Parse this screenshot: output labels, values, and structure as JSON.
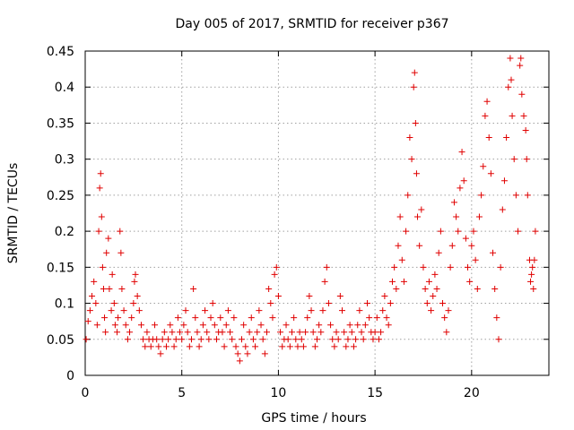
{
  "chart_data": {
    "type": "scatter",
    "title": "Day 005 of 2017, SRMTID for receiver p367",
    "xlabel": "GPS time / hours",
    "ylabel": "SRMTID / TECUs",
    "xlim": [
      0,
      24
    ],
    "ylim": [
      0,
      0.45
    ],
    "x_ticks": [
      0,
      5,
      10,
      15,
      20
    ],
    "x_tick_labels": [
      "0",
      "5",
      "10",
      "15",
      "20"
    ],
    "y_ticks": [
      0,
      0.05,
      0.1,
      0.15,
      0.2,
      0.25,
      0.3,
      0.35,
      0.4,
      0.45
    ],
    "y_tick_labels": [
      "0",
      "0.05",
      "0.1",
      "0.15",
      "0.2",
      "0.25",
      "0.3",
      "0.35",
      "0.4",
      "0.45"
    ],
    "grid": true,
    "marker": "plus",
    "color": "#e00000",
    "series": [
      {
        "name": "SRMTID",
        "points": [
          [
            0.05,
            0.05
          ],
          [
            0.15,
            0.075
          ],
          [
            0.25,
            0.09
          ],
          [
            0.35,
            0.11
          ],
          [
            0.45,
            0.13
          ],
          [
            0.55,
            0.1
          ],
          [
            0.62,
            0.07
          ],
          [
            0.7,
            0.2
          ],
          [
            0.75,
            0.26
          ],
          [
            0.8,
            0.28
          ],
          [
            0.85,
            0.22
          ],
          [
            0.9,
            0.15
          ],
          [
            0.95,
            0.12
          ],
          [
            1.0,
            0.08
          ],
          [
            1.05,
            0.06
          ],
          [
            1.1,
            0.17
          ],
          [
            1.2,
            0.19
          ],
          [
            1.25,
            0.12
          ],
          [
            1.35,
            0.09
          ],
          [
            1.4,
            0.14
          ],
          [
            1.5,
            0.1
          ],
          [
            1.55,
            0.07
          ],
          [
            1.65,
            0.06
          ],
          [
            1.7,
            0.08
          ],
          [
            1.8,
            0.2
          ],
          [
            1.85,
            0.17
          ],
          [
            1.9,
            0.12
          ],
          [
            2.0,
            0.09
          ],
          [
            2.1,
            0.07
          ],
          [
            2.2,
            0.05
          ],
          [
            2.3,
            0.06
          ],
          [
            2.4,
            0.08
          ],
          [
            2.5,
            0.1
          ],
          [
            2.55,
            0.13
          ],
          [
            2.6,
            0.14
          ],
          [
            2.7,
            0.11
          ],
          [
            2.8,
            0.09
          ],
          [
            2.9,
            0.07
          ],
          [
            3.0,
            0.05
          ],
          [
            3.1,
            0.04
          ],
          [
            3.2,
            0.06
          ],
          [
            3.3,
            0.05
          ],
          [
            3.4,
            0.04
          ],
          [
            3.5,
            0.05
          ],
          [
            3.6,
            0.07
          ],
          [
            3.7,
            0.05
          ],
          [
            3.8,
            0.04
          ],
          [
            3.9,
            0.03
          ],
          [
            4.0,
            0.05
          ],
          [
            4.1,
            0.06
          ],
          [
            4.2,
            0.04
          ],
          [
            4.3,
            0.05
          ],
          [
            4.4,
            0.07
          ],
          [
            4.5,
            0.06
          ],
          [
            4.6,
            0.04
          ],
          [
            4.7,
            0.05
          ],
          [
            4.8,
            0.08
          ],
          [
            4.9,
            0.06
          ],
          [
            5.0,
            0.05
          ],
          [
            5.1,
            0.07
          ],
          [
            5.2,
            0.09
          ],
          [
            5.3,
            0.06
          ],
          [
            5.4,
            0.04
          ],
          [
            5.5,
            0.05
          ],
          [
            5.6,
            0.12
          ],
          [
            5.7,
            0.08
          ],
          [
            5.8,
            0.06
          ],
          [
            5.9,
            0.04
          ],
          [
            6.0,
            0.05
          ],
          [
            6.1,
            0.07
          ],
          [
            6.2,
            0.09
          ],
          [
            6.3,
            0.06
          ],
          [
            6.4,
            0.05
          ],
          [
            6.5,
            0.08
          ],
          [
            6.6,
            0.1
          ],
          [
            6.7,
            0.07
          ],
          [
            6.8,
            0.05
          ],
          [
            6.9,
            0.06
          ],
          [
            7.0,
            0.08
          ],
          [
            7.1,
            0.06
          ],
          [
            7.2,
            0.04
          ],
          [
            7.3,
            0.07
          ],
          [
            7.4,
            0.09
          ],
          [
            7.5,
            0.06
          ],
          [
            7.6,
            0.05
          ],
          [
            7.7,
            0.08
          ],
          [
            7.8,
            0.04
          ],
          [
            7.9,
            0.03
          ],
          [
            8.0,
            0.02
          ],
          [
            8.1,
            0.05
          ],
          [
            8.2,
            0.07
          ],
          [
            8.3,
            0.04
          ],
          [
            8.4,
            0.03
          ],
          [
            8.5,
            0.06
          ],
          [
            8.6,
            0.08
          ],
          [
            8.7,
            0.05
          ],
          [
            8.8,
            0.04
          ],
          [
            8.9,
            0.06
          ],
          [
            9.0,
            0.09
          ],
          [
            9.1,
            0.07
          ],
          [
            9.2,
            0.05
          ],
          [
            9.3,
            0.03
          ],
          [
            9.4,
            0.06
          ],
          [
            9.5,
            0.12
          ],
          [
            9.6,
            0.1
          ],
          [
            9.7,
            0.08
          ],
          [
            9.8,
            0.14
          ],
          [
            9.9,
            0.15
          ],
          [
            10.0,
            0.11
          ],
          [
            10.1,
            0.06
          ],
          [
            10.2,
            0.04
          ],
          [
            10.3,
            0.05
          ],
          [
            10.4,
            0.07
          ],
          [
            10.5,
            0.05
          ],
          [
            10.6,
            0.04
          ],
          [
            10.7,
            0.06
          ],
          [
            10.8,
            0.08
          ],
          [
            10.9,
            0.05
          ],
          [
            11.0,
            0.04
          ],
          [
            11.1,
            0.06
          ],
          [
            11.2,
            0.05
          ],
          [
            11.3,
            0.04
          ],
          [
            11.4,
            0.06
          ],
          [
            11.5,
            0.08
          ],
          [
            11.6,
            0.11
          ],
          [
            11.7,
            0.09
          ],
          [
            11.8,
            0.06
          ],
          [
            11.9,
            0.04
          ],
          [
            12.0,
            0.05
          ],
          [
            12.1,
            0.07
          ],
          [
            12.2,
            0.06
          ],
          [
            12.3,
            0.09
          ],
          [
            12.4,
            0.13
          ],
          [
            12.5,
            0.15
          ],
          [
            12.6,
            0.1
          ],
          [
            12.7,
            0.07
          ],
          [
            12.8,
            0.05
          ],
          [
            12.9,
            0.04
          ],
          [
            13.0,
            0.06
          ],
          [
            13.1,
            0.05
          ],
          [
            13.2,
            0.11
          ],
          [
            13.3,
            0.09
          ],
          [
            13.4,
            0.06
          ],
          [
            13.5,
            0.04
          ],
          [
            13.6,
            0.05
          ],
          [
            13.7,
            0.07
          ],
          [
            13.8,
            0.06
          ],
          [
            13.9,
            0.04
          ],
          [
            14.0,
            0.05
          ],
          [
            14.1,
            0.07
          ],
          [
            14.2,
            0.09
          ],
          [
            14.3,
            0.06
          ],
          [
            14.4,
            0.05
          ],
          [
            14.5,
            0.07
          ],
          [
            14.6,
            0.1
          ],
          [
            14.7,
            0.08
          ],
          [
            14.8,
            0.06
          ],
          [
            14.9,
            0.05
          ],
          [
            15.0,
            0.06
          ],
          [
            15.1,
            0.08
          ],
          [
            15.2,
            0.05
          ],
          [
            15.3,
            0.06
          ],
          [
            15.4,
            0.09
          ],
          [
            15.5,
            0.11
          ],
          [
            15.6,
            0.08
          ],
          [
            15.7,
            0.07
          ],
          [
            15.8,
            0.1
          ],
          [
            15.9,
            0.13
          ],
          [
            16.0,
            0.15
          ],
          [
            16.1,
            0.12
          ],
          [
            16.2,
            0.18
          ],
          [
            16.3,
            0.22
          ],
          [
            16.4,
            0.16
          ],
          [
            16.5,
            0.13
          ],
          [
            16.6,
            0.2
          ],
          [
            16.7,
            0.25
          ],
          [
            16.8,
            0.33
          ],
          [
            16.9,
            0.3
          ],
          [
            17.0,
            0.4
          ],
          [
            17.05,
            0.42
          ],
          [
            17.1,
            0.35
          ],
          [
            17.15,
            0.28
          ],
          [
            17.2,
            0.22
          ],
          [
            17.3,
            0.18
          ],
          [
            17.4,
            0.23
          ],
          [
            17.5,
            0.15
          ],
          [
            17.6,
            0.12
          ],
          [
            17.7,
            0.1
          ],
          [
            17.8,
            0.13
          ],
          [
            17.9,
            0.09
          ],
          [
            18.0,
            0.11
          ],
          [
            18.1,
            0.14
          ],
          [
            18.2,
            0.12
          ],
          [
            18.3,
            0.17
          ],
          [
            18.4,
            0.2
          ],
          [
            18.5,
            0.1
          ],
          [
            18.6,
            0.08
          ],
          [
            18.7,
            0.06
          ],
          [
            18.8,
            0.09
          ],
          [
            18.9,
            0.15
          ],
          [
            19.0,
            0.18
          ],
          [
            19.1,
            0.24
          ],
          [
            19.2,
            0.22
          ],
          [
            19.3,
            0.2
          ],
          [
            19.4,
            0.26
          ],
          [
            19.5,
            0.31
          ],
          [
            19.6,
            0.27
          ],
          [
            19.7,
            0.19
          ],
          [
            19.8,
            0.15
          ],
          [
            19.9,
            0.13
          ],
          [
            20.0,
            0.18
          ],
          [
            20.1,
            0.2
          ],
          [
            20.2,
            0.16
          ],
          [
            20.3,
            0.12
          ],
          [
            20.4,
            0.22
          ],
          [
            20.5,
            0.25
          ],
          [
            20.6,
            0.29
          ],
          [
            20.7,
            0.36
          ],
          [
            20.8,
            0.38
          ],
          [
            20.9,
            0.33
          ],
          [
            21.0,
            0.28
          ],
          [
            21.1,
            0.17
          ],
          [
            21.2,
            0.12
          ],
          [
            21.3,
            0.08
          ],
          [
            21.4,
            0.05
          ],
          [
            21.5,
            0.15
          ],
          [
            21.6,
            0.23
          ],
          [
            21.7,
            0.27
          ],
          [
            21.8,
            0.33
          ],
          [
            21.9,
            0.4
          ],
          [
            22.0,
            0.44
          ],
          [
            22.05,
            0.41
          ],
          [
            22.1,
            0.36
          ],
          [
            22.2,
            0.3
          ],
          [
            22.3,
            0.25
          ],
          [
            22.4,
            0.2
          ],
          [
            22.5,
            0.43
          ],
          [
            22.55,
            0.44
          ],
          [
            22.6,
            0.39
          ],
          [
            22.7,
            0.36
          ],
          [
            22.8,
            0.34
          ],
          [
            22.85,
            0.3
          ],
          [
            22.9,
            0.25
          ],
          [
            23.0,
            0.16
          ],
          [
            23.05,
            0.13
          ],
          [
            23.1,
            0.14
          ],
          [
            23.15,
            0.15
          ],
          [
            23.2,
            0.12
          ],
          [
            23.25,
            0.16
          ],
          [
            23.3,
            0.2
          ]
        ]
      }
    ]
  }
}
